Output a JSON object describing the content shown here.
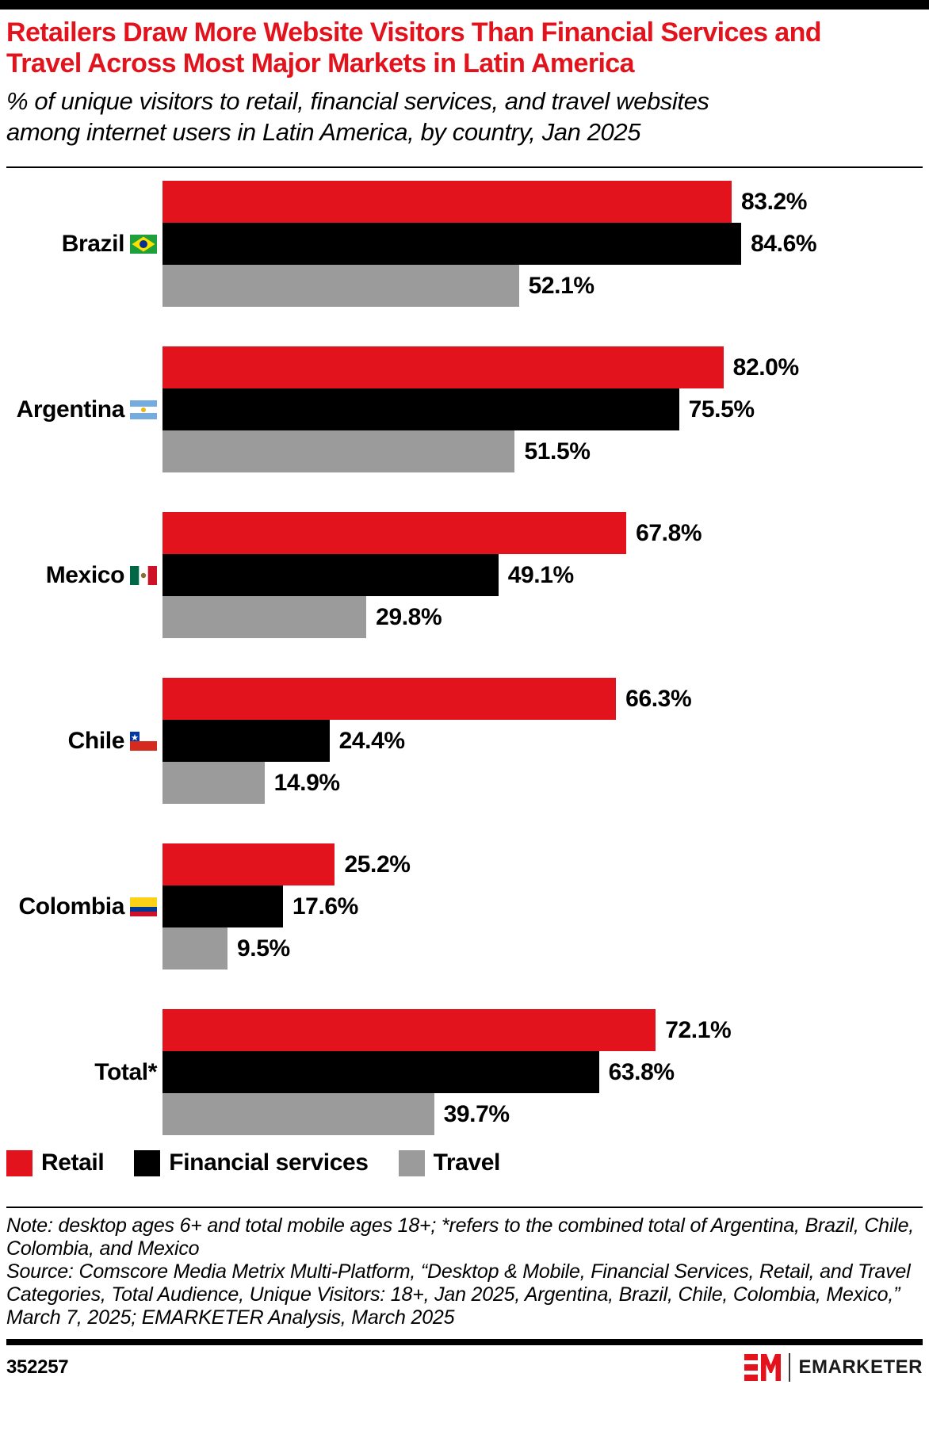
{
  "header": {
    "title": "Retailers Draw More Website Visitors Than Financial Services and Travel Across Most Major Markets in Latin America",
    "subtitle": "% of unique visitors to retail, financial services, and travel websites among internet users in Latin America, by country, Jan 2025"
  },
  "chart_data": {
    "type": "bar",
    "orientation": "horizontal",
    "unit": "%",
    "title": "Retailers Draw More Website Visitors Than Financial Services and Travel Across Most Major Markets in Latin America",
    "subtitle": "% of unique visitors to retail, financial services, and travel websites among internet users in Latin America, by country, Jan 2025",
    "categories": [
      "Brazil",
      "Argentina",
      "Mexico",
      "Chile",
      "Colombia",
      "Total*"
    ],
    "category_flag_icons": [
      "brazil-flag-icon",
      "argentina-flag-icon",
      "mexico-flag-icon",
      "chile-flag-icon",
      "colombia-flag-icon",
      null
    ],
    "series": [
      {
        "name": "Retail",
        "color": "#E2131C",
        "values": [
          83.2,
          82.0,
          67.8,
          66.3,
          25.2,
          72.1
        ]
      },
      {
        "name": "Financial services",
        "color": "#000000",
        "values": [
          84.6,
          75.5,
          49.1,
          24.4,
          17.6,
          63.8
        ]
      },
      {
        "name": "Travel",
        "color": "#9B9B9B",
        "values": [
          52.1,
          51.5,
          29.8,
          14.9,
          9.5,
          39.7
        ]
      }
    ],
    "xlim": [
      0,
      100
    ],
    "grid": false,
    "legend_position": "bottom",
    "value_label_format": "{value}%"
  },
  "legend": {
    "items": [
      {
        "label": "Retail",
        "color": "#E2131C"
      },
      {
        "label": "Financial services",
        "color": "#000000"
      },
      {
        "label": "Travel",
        "color": "#9B9B9B"
      }
    ]
  },
  "footnote": {
    "note": "Note: desktop ages 6+ and total mobile ages 18+; *refers to the combined total of Argentina, Brazil, Chile, Colombia, and Mexico",
    "source": "Source: Comscore Media Metrix Multi-Platform, “Desktop & Mobile, Financial Services, Retail, and Travel Categories, Total Audience, Unique Visitors: 18+, Jan 2025, Argentina, Brazil, Chile, Colombia, Mexico,” March 7, 2025; EMARKETER Analysis, March 2025"
  },
  "footer": {
    "chart_id": "352257",
    "brand": "EMARKETER",
    "brand_icon": "emarketer-logo-icon"
  },
  "colors": {
    "accent_red": "#E2131C",
    "bar_black": "#000000",
    "bar_gray": "#9B9B9B",
    "background": "#FFFFFF"
  }
}
